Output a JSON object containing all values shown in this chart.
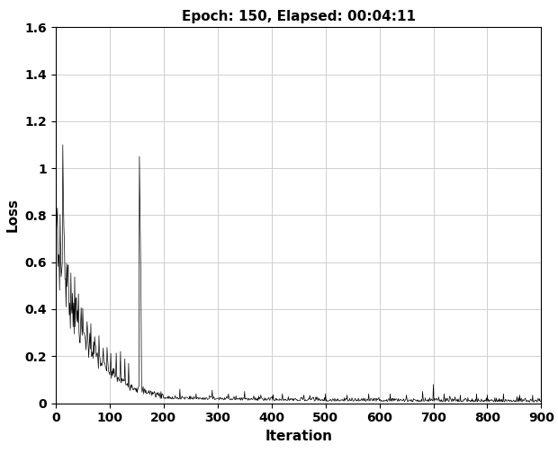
{
  "title": "Epoch: 150, Elapsed: 00:04:11",
  "xlabel": "Iteration",
  "ylabel": "Loss",
  "xlim": [
    0,
    900
  ],
  "ylim": [
    0,
    1.6
  ],
  "xticks": [
    0,
    100,
    200,
    300,
    400,
    500,
    600,
    700,
    800,
    900
  ],
  "yticks": [
    0,
    0.2,
    0.4,
    0.6,
    0.8,
    1.0,
    1.2,
    1.4,
    1.6
  ],
  "line_color": "#000000",
  "line_width": 0.5,
  "background_color": "#ffffff",
  "grid_color": "#d0d0d0",
  "title_fontsize": 11,
  "label_fontsize": 11,
  "tick_fontsize": 10,
  "tick_fontweight": "bold",
  "label_fontweight": "bold",
  "title_fontweight": "bold"
}
